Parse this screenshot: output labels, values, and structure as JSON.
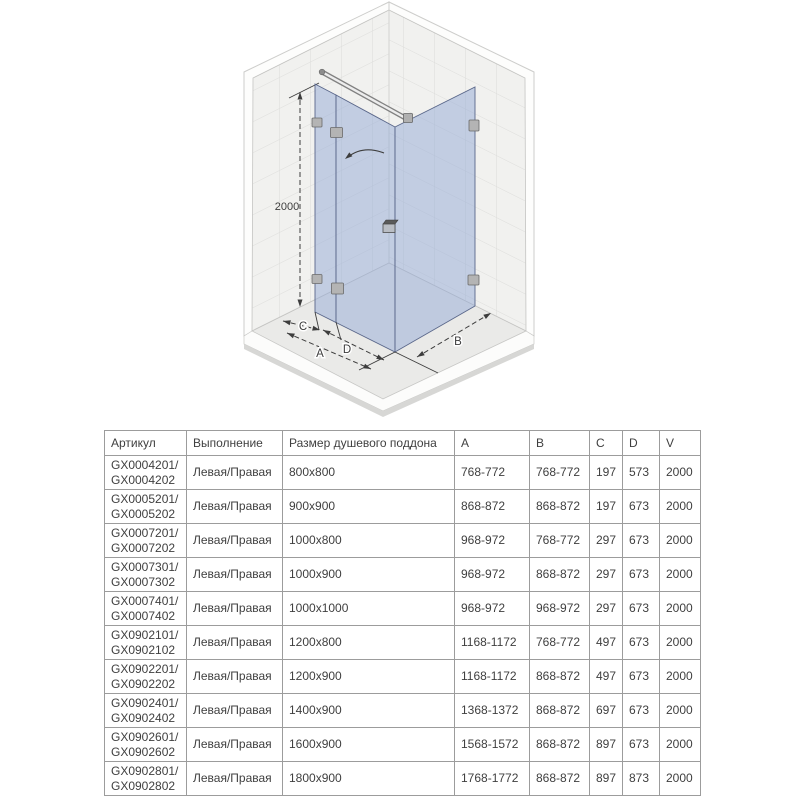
{
  "diagram": {
    "labels": {
      "height": "2000",
      "a": "A",
      "b": "B",
      "c": "C",
      "d": "D"
    },
    "colors": {
      "glass": "#93a9d6",
      "glass_edge": "#5a678a",
      "wall_tile": "#f1f1ef",
      "tile_grout": "#dcdcda",
      "floor": "#eaeae8",
      "floor_shadow": "#d7d7d5",
      "line": "#3d3d3d",
      "chrome": "#818181"
    }
  },
  "table": {
    "headers": [
      "Артикул",
      "Выполнение",
      "Размер душевого поддона",
      "A",
      "B",
      "C",
      "D",
      "V"
    ],
    "rows": [
      {
        "article": [
          "GX0004201/",
          "GX0004202"
        ],
        "variant": "Левая/Правая",
        "size": "800x800",
        "a": "768-772",
        "b": "768-772",
        "c": "197",
        "d": "573",
        "v": "2000"
      },
      {
        "article": [
          "GX0005201/",
          "GX0005202"
        ],
        "variant": "Левая/Правая",
        "size": "900x900",
        "a": "868-872",
        "b": "868-872",
        "c": "197",
        "d": "673",
        "v": "2000"
      },
      {
        "article": [
          "GX0007201/",
          "GX0007202"
        ],
        "variant": "Левая/Правая",
        "size": "1000x800",
        "a": "968-972",
        "b": "768-772",
        "c": "297",
        "d": "673",
        "v": "2000"
      },
      {
        "article": [
          "GX0007301/",
          "GX0007302"
        ],
        "variant": "Левая/Правая",
        "size": "1000x900",
        "a": "968-972",
        "b": "868-872",
        "c": "297",
        "d": "673",
        "v": "2000"
      },
      {
        "article": [
          "GX0007401/",
          "GX0007402"
        ],
        "variant": "Левая/Правая",
        "size": "1000x1000",
        "a": "968-972",
        "b": "968-972",
        "c": "297",
        "d": "673",
        "v": "2000"
      },
      {
        "article": [
          "GX0902101/",
          "GX0902102"
        ],
        "variant": "Левая/Правая",
        "size": "1200x800",
        "a": "1168-1172",
        "b": "768-772",
        "c": "497",
        "d": "673",
        "v": "2000"
      },
      {
        "article": [
          "GX0902201/",
          "GX0902202"
        ],
        "variant": "Левая/Правая",
        "size": "1200x900",
        "a": "1168-1172",
        "b": "868-872",
        "c": "497",
        "d": "673",
        "v": "2000"
      },
      {
        "article": [
          "GX0902401/",
          "GX0902402"
        ],
        "variant": "Левая/Правая",
        "size": "1400x900",
        "a": "1368-1372",
        "b": "868-872",
        "c": "697",
        "d": "673",
        "v": "2000"
      },
      {
        "article": [
          "GX0902601/",
          "GX0902602"
        ],
        "variant": "Левая/Правая",
        "size": "1600x900",
        "a": "1568-1572",
        "b": "868-872",
        "c": "897",
        "d": "673",
        "v": "2000"
      },
      {
        "article": [
          "GX0902801/",
          "GX0902802"
        ],
        "variant": "Левая/Правая",
        "size": "1800x900",
        "a": "1768-1772",
        "b": "868-872",
        "c": "897",
        "d": "873",
        "v": "2000"
      }
    ]
  }
}
